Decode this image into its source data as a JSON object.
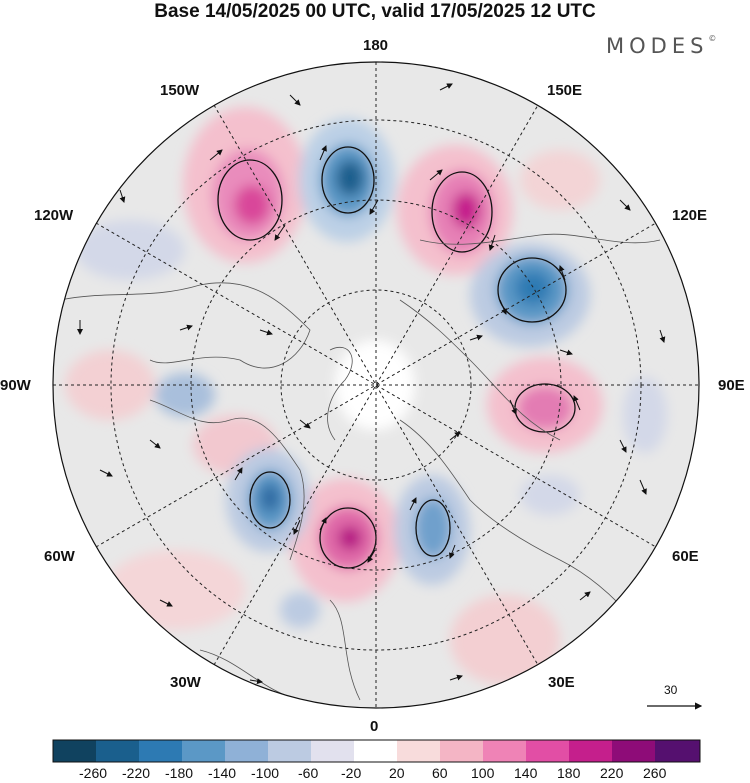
{
  "title": "Base 14/05/2025 00 UTC, valid 17/05/2025 12 UTC",
  "brand": "MODES",
  "brand_mark": "©",
  "map": {
    "projection": "north polar stereographic",
    "longitude_labels": {
      "top": "180",
      "bottom": "0",
      "left": "90W",
      "right": "90E",
      "upper_left_outer": "150W",
      "upper_left_inner": "120W",
      "upper_right_outer": "150E",
      "upper_right_inner": "120E",
      "lower_left_outer": "60W",
      "lower_left_inner": "30W",
      "lower_right_outer": "60E",
      "lower_right_inner": "30E"
    },
    "vector_scale_label": "30",
    "colors": {
      "background_field": "#e8e8e8",
      "negative_strong": "#2d6aa3",
      "positive_strong": "#d9469a",
      "coast": "#555555"
    }
  },
  "colorbar": {
    "labels": [
      "-260",
      "-220",
      "-180",
      "-140",
      "-100",
      "-60",
      "-20",
      "20",
      "60",
      "100",
      "140",
      "180",
      "220",
      "260"
    ],
    "colors": [
      "#10425f",
      "#1a5f8d",
      "#2d7ab3",
      "#5b98c6",
      "#8fb1d7",
      "#bccbe2",
      "#e2e1ee",
      "#ffffff",
      "#f8dcdc",
      "#f4b5c5",
      "#ef83b6",
      "#e24ea5",
      "#c51f8c",
      "#8e0c78",
      "#55106f"
    ]
  }
}
